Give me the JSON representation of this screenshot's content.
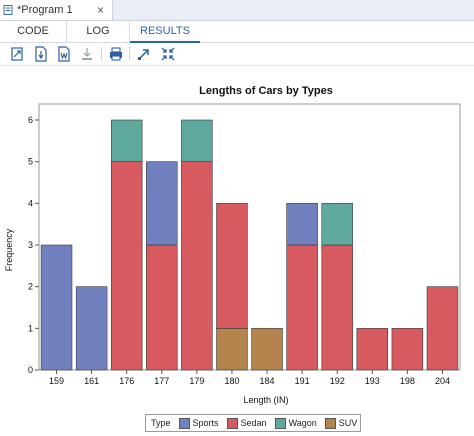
{
  "tabs": {
    "document_tab": "*Program 1",
    "close_glyph": "×",
    "view_tabs": [
      "CODE",
      "LOG",
      "RESULTS"
    ],
    "active_view": "RESULTS"
  },
  "toolbar": {
    "icons": [
      "new-window-icon",
      "download-pdf-icon",
      "download-word-icon",
      "download-icon",
      "print-icon",
      "expand-arrow-icon",
      "collapse-arrows-icon"
    ]
  },
  "chart_data": {
    "type": "bar",
    "stacked": true,
    "title": "Lengths of Cars by Types",
    "xlabel": "Length (IN)",
    "ylabel": "Frequency",
    "ylim": [
      0,
      6
    ],
    "yticks": [
      "0",
      "1",
      "2",
      "3",
      "4",
      "5",
      "6"
    ],
    "categories": [
      "159",
      "161",
      "176",
      "177",
      "179",
      "180",
      "184",
      "191",
      "192",
      "193",
      "198",
      "204"
    ],
    "series": [
      {
        "name": "Sports",
        "color": "#7181c0",
        "values": [
          3,
          2,
          0,
          2,
          0,
          0,
          0,
          1,
          0,
          0,
          0,
          0
        ]
      },
      {
        "name": "Sedan",
        "color": "#d65a5f",
        "values": [
          0,
          0,
          5,
          3,
          5,
          3,
          0,
          3,
          3,
          1,
          1,
          2
        ]
      },
      {
        "name": "Wagon",
        "color": "#5fa89e",
        "values": [
          0,
          0,
          1,
          0,
          1,
          0,
          0,
          0,
          1,
          0,
          0,
          0
        ]
      },
      {
        "name": "SUV",
        "color": "#b4834e",
        "values": [
          0,
          0,
          0,
          0,
          0,
          1,
          1,
          0,
          0,
          0,
          0,
          0
        ]
      }
    ],
    "stack_order": [
      "SUV",
      "Sedan",
      "Sports",
      "Wagon"
    ],
    "legend_title": "Type",
    "legend_placement": "bottom-center",
    "grid": false
  }
}
